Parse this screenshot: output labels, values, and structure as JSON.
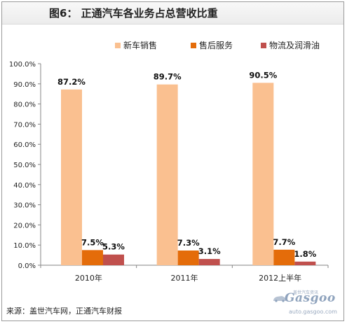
{
  "chart_data": {
    "type": "bar",
    "title": "图6：  正通汽车各业务占总营收比重",
    "categories": [
      "2010年",
      "2011年",
      "2012上半年"
    ],
    "series": [
      {
        "name": "新车销售",
        "color": "#fac090",
        "values": [
          87.2,
          89.7,
          90.5
        ],
        "labels": [
          "87.2%",
          "89.7%",
          "90.5%"
        ]
      },
      {
        "name": "售后服务",
        "color": "#e46c0a",
        "values": [
          7.5,
          7.3,
          7.7
        ],
        "labels": [
          "7.5%",
          "7.3%",
          "7.7%"
        ]
      },
      {
        "name": "物流及润滑油",
        "color": "#c0504d",
        "values": [
          5.3,
          3.1,
          1.8
        ],
        "labels": [
          "5.3%",
          "3.1%",
          "1.8%"
        ]
      }
    ],
    "ylim": [
      0,
      100
    ],
    "yticks": [
      "0.0%",
      "10.0%",
      "20.0%",
      "30.0%",
      "40.0%",
      "50.0%",
      "60.0%",
      "70.0%",
      "80.0%",
      "90.0%",
      "100.0%"
    ],
    "xlabel": "",
    "ylabel": "",
    "legend_position": "top-right",
    "grid": false
  },
  "source": "来源：盖世汽车网，正通汽车财报",
  "watermark": {
    "cn": "盖世汽车资讯",
    "logo": "Gasgoo",
    "url": "auto.gasgoo.com"
  }
}
